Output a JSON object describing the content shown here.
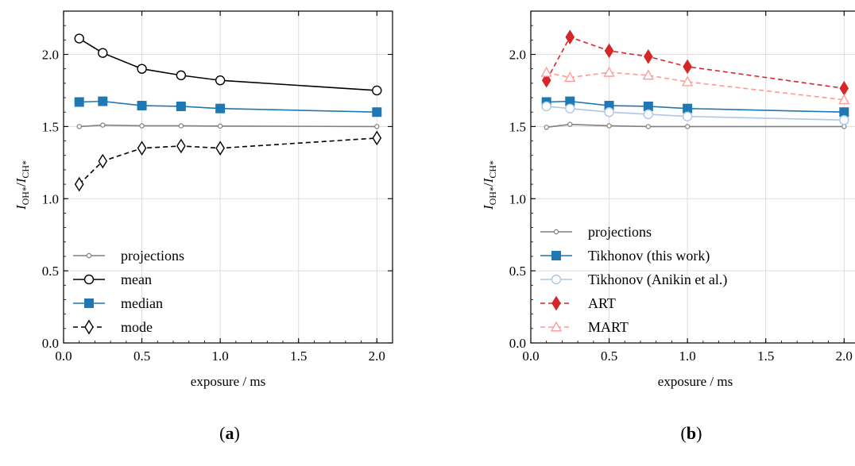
{
  "chart_data": [
    {
      "panel_label": "(a)",
      "type": "line",
      "xlabel": "exposure / ms",
      "ylabel": "I_OH*/I_CH*",
      "xlim": [
        0.0,
        2.1
      ],
      "ylim": [
        0.0,
        2.3
      ],
      "xticks": [
        "0.0",
        "0.5",
        "1.0",
        "1.5",
        "2.0"
      ],
      "yticks": [
        "0.0",
        "0.5",
        "1.0",
        "1.5",
        "2.0"
      ],
      "grid": true,
      "legend_position": "lower-left",
      "series": [
        {
          "name": "projections",
          "color": "#808080",
          "marker": "small-circle",
          "dash": "solid",
          "x": [
            0.1,
            0.25,
            0.5,
            0.75,
            1.0,
            2.0
          ],
          "y": [
            1.5,
            1.51,
            1.505,
            1.505,
            1.503,
            1.5
          ]
        },
        {
          "name": "mean",
          "color": "#000000",
          "marker": "circle",
          "dash": "solid",
          "x": [
            0.1,
            0.25,
            0.5,
            0.75,
            1.0,
            2.0
          ],
          "y": [
            2.11,
            2.01,
            1.9,
            1.855,
            1.82,
            1.75
          ]
        },
        {
          "name": "median",
          "color": "#1f77b4",
          "marker": "square",
          "dash": "solid",
          "x": [
            0.1,
            0.25,
            0.5,
            0.75,
            1.0,
            2.0
          ],
          "y": [
            1.67,
            1.675,
            1.645,
            1.64,
            1.625,
            1.6
          ]
        },
        {
          "name": "mode",
          "color": "#000000",
          "marker": "thin-diamond",
          "dash": "dashed",
          "x": [
            0.1,
            0.25,
            0.5,
            0.75,
            1.0,
            2.0
          ],
          "y": [
            1.1,
            1.26,
            1.35,
            1.365,
            1.35,
            1.42
          ]
        }
      ]
    },
    {
      "panel_label": "(b)",
      "type": "line",
      "xlabel": "exposure / ms",
      "ylabel": "I_OH*/I_CH*",
      "xlim": [
        0.0,
        2.1
      ],
      "ylim": [
        0.0,
        2.3
      ],
      "xticks": [
        "0.0",
        "0.5",
        "1.0",
        "1.5",
        "2.0"
      ],
      "yticks": [
        "0.0",
        "0.5",
        "1.0",
        "1.5",
        "2.0"
      ],
      "grid": true,
      "legend_position": "lower-left",
      "series": [
        {
          "name": "projections",
          "color": "#808080",
          "marker": "small-circle",
          "dash": "solid",
          "x": [
            0.1,
            0.25,
            0.5,
            0.75,
            1.0,
            2.0
          ],
          "y": [
            1.495,
            1.515,
            1.505,
            1.5,
            1.5,
            1.5
          ]
        },
        {
          "name": "Tikhonov (this work)",
          "color": "#1f77b4",
          "marker": "square",
          "dash": "solid",
          "x": [
            0.1,
            0.25,
            0.5,
            0.75,
            1.0,
            2.0
          ],
          "y": [
            1.67,
            1.675,
            1.645,
            1.64,
            1.625,
            1.6
          ]
        },
        {
          "name": "Tikhonov (Anikin et al.)",
          "color": "#aec7e8",
          "marker": "circle",
          "dash": "solid",
          "x": [
            0.1,
            0.25,
            0.5,
            0.75,
            1.0,
            2.0
          ],
          "y": [
            1.64,
            1.625,
            1.6,
            1.585,
            1.57,
            1.545
          ]
        },
        {
          "name": "ART",
          "color": "#d62728",
          "marker": "thin-diamond",
          "dash": "dashed",
          "x": [
            0.1,
            0.25,
            0.5,
            0.75,
            1.0,
            2.0
          ],
          "y": [
            1.82,
            2.12,
            2.025,
            1.985,
            1.915,
            1.765
          ]
        },
        {
          "name": "MART",
          "color": "#ff9896",
          "marker": "triangle",
          "dash": "dashed",
          "x": [
            0.1,
            0.25,
            0.5,
            0.75,
            1.0,
            2.0
          ],
          "y": [
            1.875,
            1.84,
            1.875,
            1.855,
            1.81,
            1.685
          ]
        }
      ]
    }
  ]
}
